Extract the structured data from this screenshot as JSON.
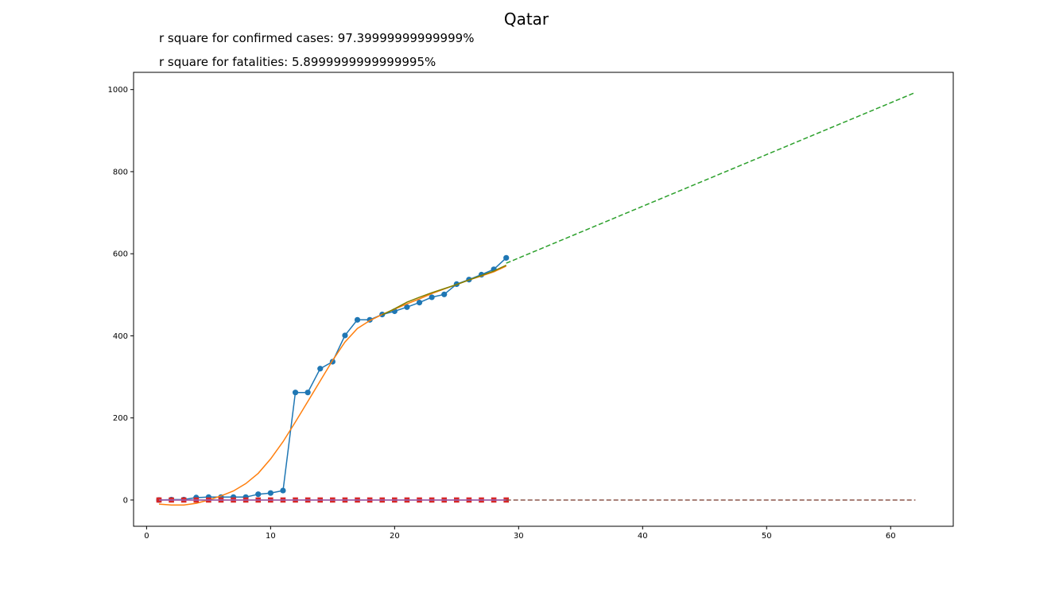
{
  "chart_data": {
    "type": "line",
    "title": "Qatar",
    "annotations": [
      "r square for confirmed cases: 97.39999999999999%",
      "r square for fatalities: 5.8999999999999995%"
    ],
    "xlabel": "",
    "ylabel": "",
    "xlim": [
      -1.05,
      65.05
    ],
    "ylim": [
      -64,
      1042
    ],
    "xticks": [
      0,
      10,
      20,
      30,
      40,
      50,
      60
    ],
    "yticks": [
      0,
      200,
      400,
      600,
      800,
      1000
    ],
    "grid": false,
    "legend": "none",
    "series": [
      {
        "kind": "line-marker-circle",
        "color": "#1f77b4",
        "x": [
          1,
          2,
          3,
          4,
          5,
          6,
          7,
          8,
          9,
          10,
          11,
          12,
          13,
          14,
          15,
          16,
          17,
          18,
          19,
          20,
          21,
          22,
          23,
          24,
          25,
          26,
          27,
          28,
          29
        ],
        "y": [
          0,
          1,
          1,
          6,
          7,
          7,
          7,
          7,
          14,
          17,
          23,
          262,
          262,
          320,
          337,
          401,
          439,
          439,
          452,
          460,
          470,
          481,
          494,
          501,
          526,
          537,
          549,
          562,
          590
        ]
      },
      {
        "kind": "line",
        "color": "#ff7f0e",
        "x": [
          1,
          2,
          3,
          4,
          5,
          6,
          7,
          8,
          9,
          10,
          11,
          12,
          13,
          14,
          15,
          16,
          17,
          18,
          19,
          20,
          21,
          22,
          23,
          24,
          25,
          26,
          27,
          28,
          29
        ],
        "y": [
          -10,
          -12,
          -12,
          -8,
          0,
          10,
          22,
          40,
          65,
          100,
          142,
          190,
          240,
          290,
          340,
          385,
          418,
          437,
          452,
          465,
          478,
          490,
          503,
          514,
          525,
          536,
          546,
          556,
          570
        ]
      },
      {
        "kind": "line",
        "color": "#808000",
        "x": [
          19,
          20,
          21,
          22,
          23,
          24,
          25,
          26,
          27,
          28,
          29
        ],
        "y": [
          451,
          466,
          482,
          494,
          505,
          515,
          525,
          536,
          547,
          558,
          572
        ]
      },
      {
        "kind": "line-dashed",
        "color": "#2ca02c",
        "x": [
          29,
          62
        ],
        "y": [
          577,
          993
        ]
      },
      {
        "kind": "line-marker-square",
        "color": "#d62728",
        "x": [
          1,
          2,
          3,
          4,
          5,
          6,
          7,
          8,
          9,
          10,
          11,
          12,
          13,
          14,
          15,
          16,
          17,
          18,
          19,
          20,
          21,
          22,
          23,
          24,
          25,
          26,
          27,
          28,
          29
        ],
        "y": [
          0,
          0,
          0,
          0,
          0,
          0,
          0,
          0,
          0,
          0,
          0,
          0,
          0,
          0,
          0,
          0,
          0,
          0,
          0,
          0,
          0,
          0,
          0,
          0,
          0,
          0,
          0,
          0,
          0
        ]
      },
      {
        "kind": "line",
        "color": "#9467bd",
        "x": [
          1,
          29
        ],
        "y": [
          0,
          0
        ]
      },
      {
        "kind": "line-dashed",
        "color": "#8c564b",
        "x": [
          29,
          62
        ],
        "y": [
          0,
          0
        ]
      }
    ]
  }
}
